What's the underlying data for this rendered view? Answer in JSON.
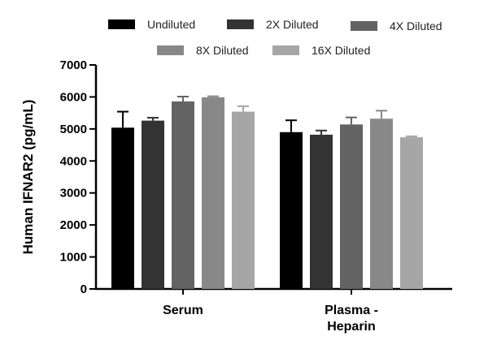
{
  "chart_data": {
    "type": "bar",
    "ylabel": "Human IFNAR2 (pg/mL)",
    "xlabel": "",
    "ylim": [
      0,
      7000
    ],
    "yticks": [
      0,
      1000,
      2000,
      3000,
      4000,
      5000,
      6000,
      7000
    ],
    "tick_labels": [
      "0",
      "1000",
      "2000",
      "3000",
      "4000",
      "5000",
      "6000",
      "7000"
    ],
    "categories": [
      "Serum",
      "Plasma - Heparin"
    ],
    "category_lines": [
      [
        "Serum"
      ],
      [
        "Plasma -",
        "Heparin"
      ]
    ],
    "legend_position": "top",
    "grid": false,
    "series": [
      {
        "name": "Undiluted",
        "color": "#000000",
        "values": [
          5040,
          4900
        ],
        "errors": [
          500,
          370
        ]
      },
      {
        "name": "2X Diluted",
        "color": "#333333",
        "values": [
          5260,
          4820
        ],
        "errors": [
          90,
          130
        ]
      },
      {
        "name": "4X Diluted",
        "color": "#636363",
        "values": [
          5860,
          5140
        ],
        "errors": [
          150,
          220
        ]
      },
      {
        "name": "8X Diluted",
        "color": "#888888",
        "values": [
          5990,
          5320
        ],
        "errors": [
          30,
          250
        ]
      },
      {
        "name": "16X Diluted",
        "color": "#a6a6a6",
        "values": [
          5540,
          4740
        ],
        "errors": [
          170,
          30
        ]
      }
    ]
  }
}
